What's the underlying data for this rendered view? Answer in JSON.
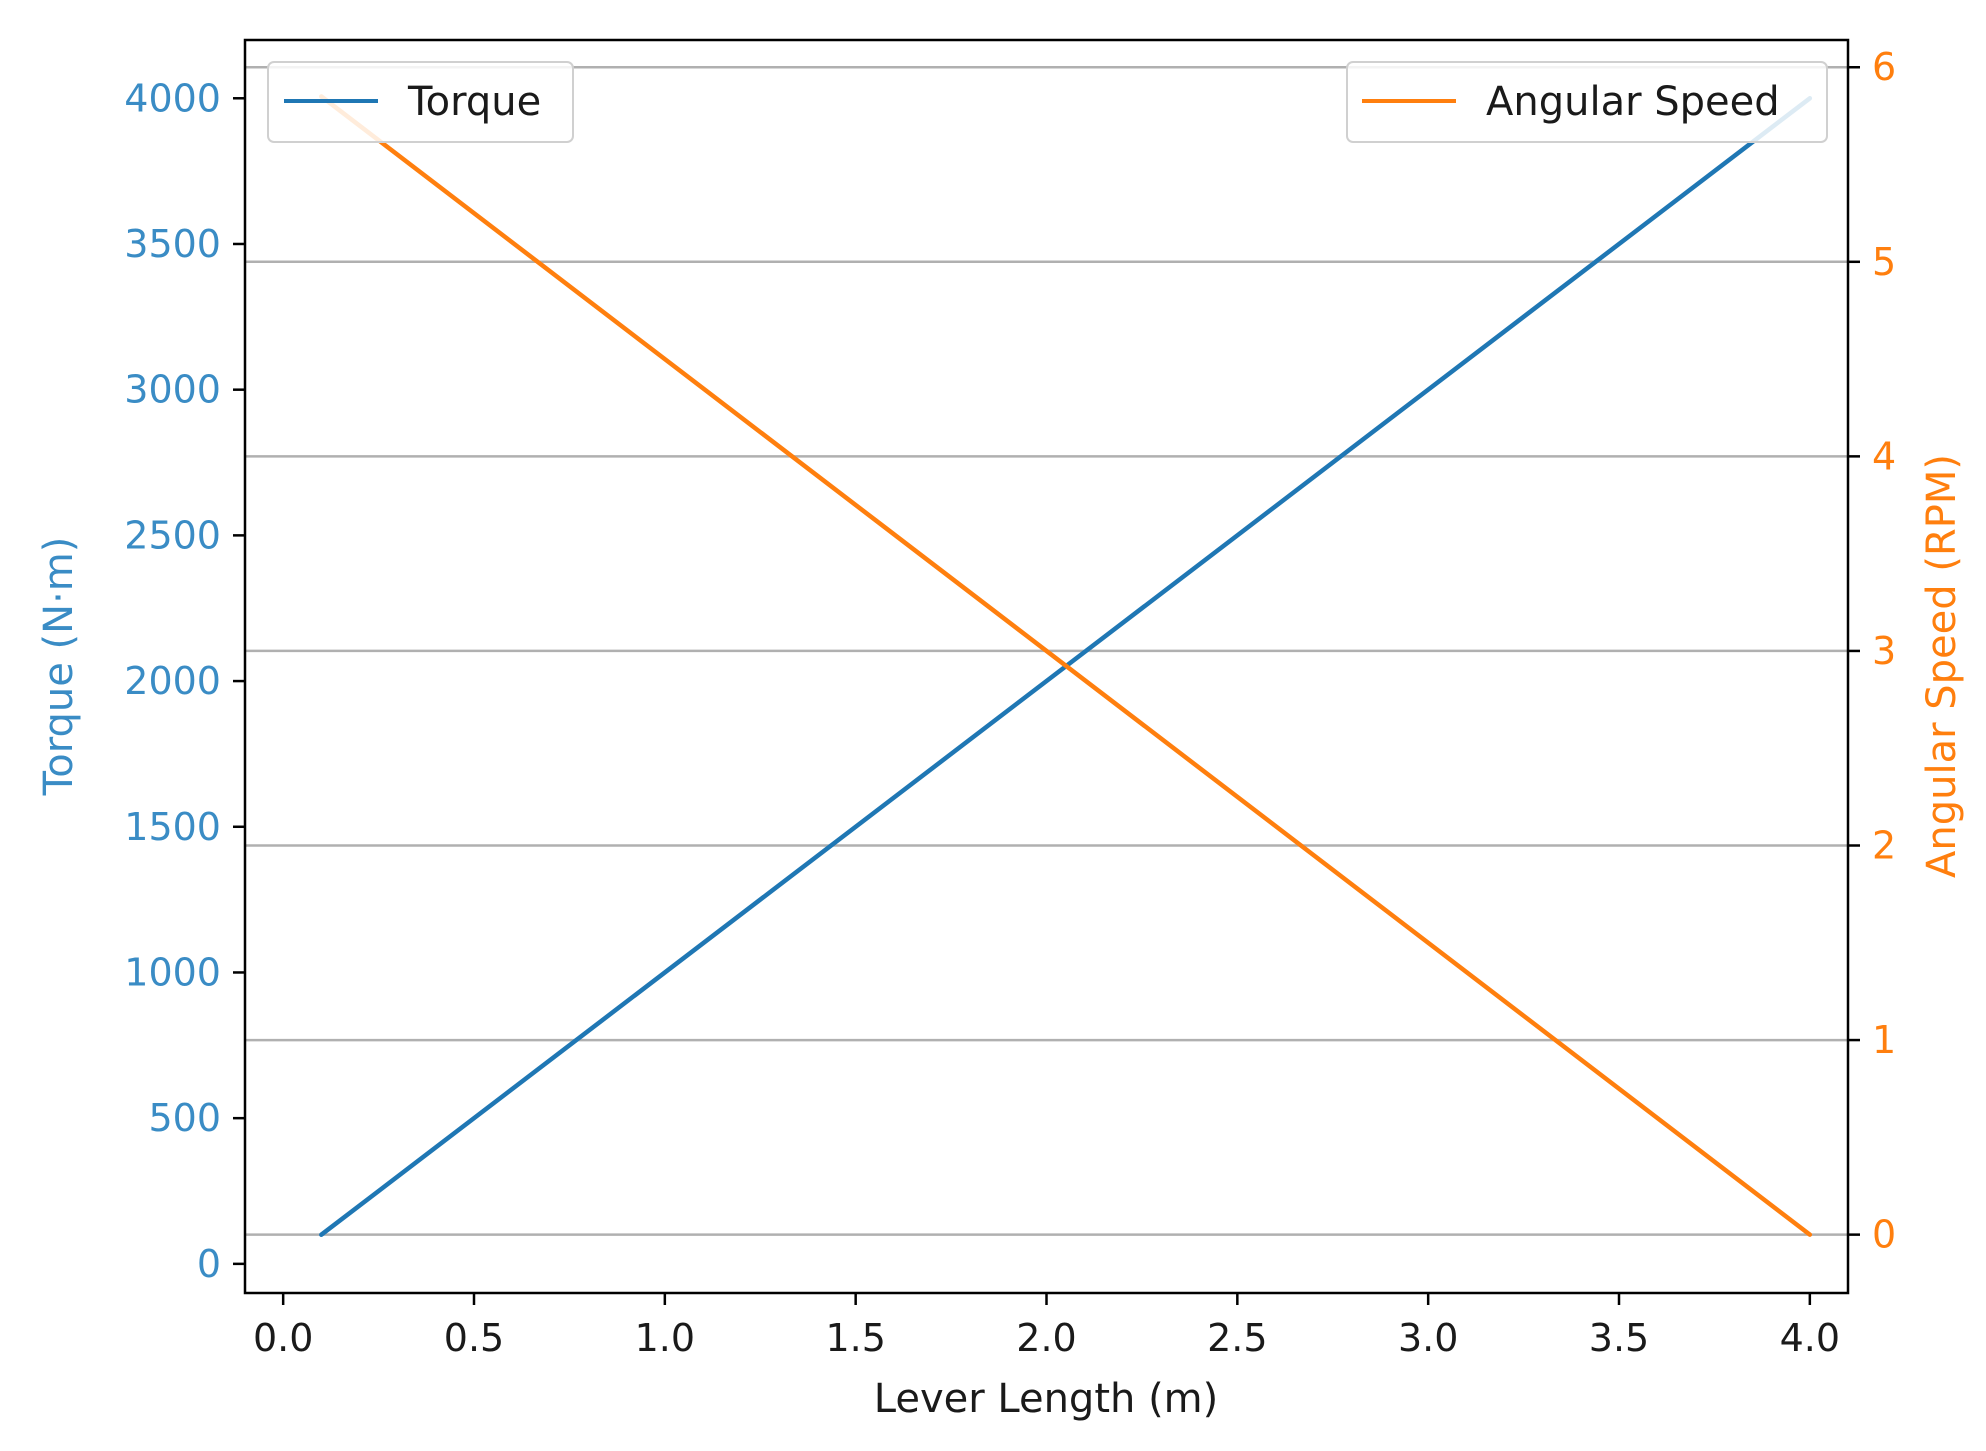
{
  "chart_data": {
    "type": "line",
    "title": "",
    "xlabel": "Lever Length (m)",
    "ylabel_left": "Torque (N·m)",
    "ylabel_right": "Angular Speed (RPM)",
    "x": [
      0.1,
      4.0
    ],
    "xlim": [
      -0.1,
      4.1
    ],
    "xticks": [
      "0.0",
      "0.5",
      "1.0",
      "1.5",
      "2.0",
      "2.5",
      "3.0",
      "3.5",
      "4.0"
    ],
    "ylim_left": [
      -100,
      4200
    ],
    "yticks_left": [
      "0",
      "500",
      "1000",
      "1500",
      "2000",
      "2500",
      "3000",
      "3500",
      "4000"
    ],
    "ylim_right": [
      -0.3,
      6.14
    ],
    "yticks_right": [
      "0",
      "1",
      "2",
      "3",
      "4",
      "5",
      "6"
    ],
    "grid": "horizontal, right axis",
    "series": [
      {
        "name": "Torque",
        "axis": "left",
        "color": "#1f77b4",
        "x": [
          0.1,
          4.0
        ],
        "values": [
          100,
          4000
        ]
      },
      {
        "name": "Angular Speed",
        "axis": "right",
        "color": "#ff7f0e",
        "x": [
          0.1,
          4.0
        ],
        "values": [
          5.85,
          0
        ]
      }
    ],
    "legends": [
      {
        "placement": "upper left",
        "entries": [
          "Torque"
        ]
      },
      {
        "placement": "upper right",
        "entries": [
          "Angular Speed"
        ]
      }
    ],
    "colors": {
      "left_axis": "#3a8cc5",
      "right_axis": "#ff7f0e",
      "grid": "#b0b0b0"
    }
  }
}
